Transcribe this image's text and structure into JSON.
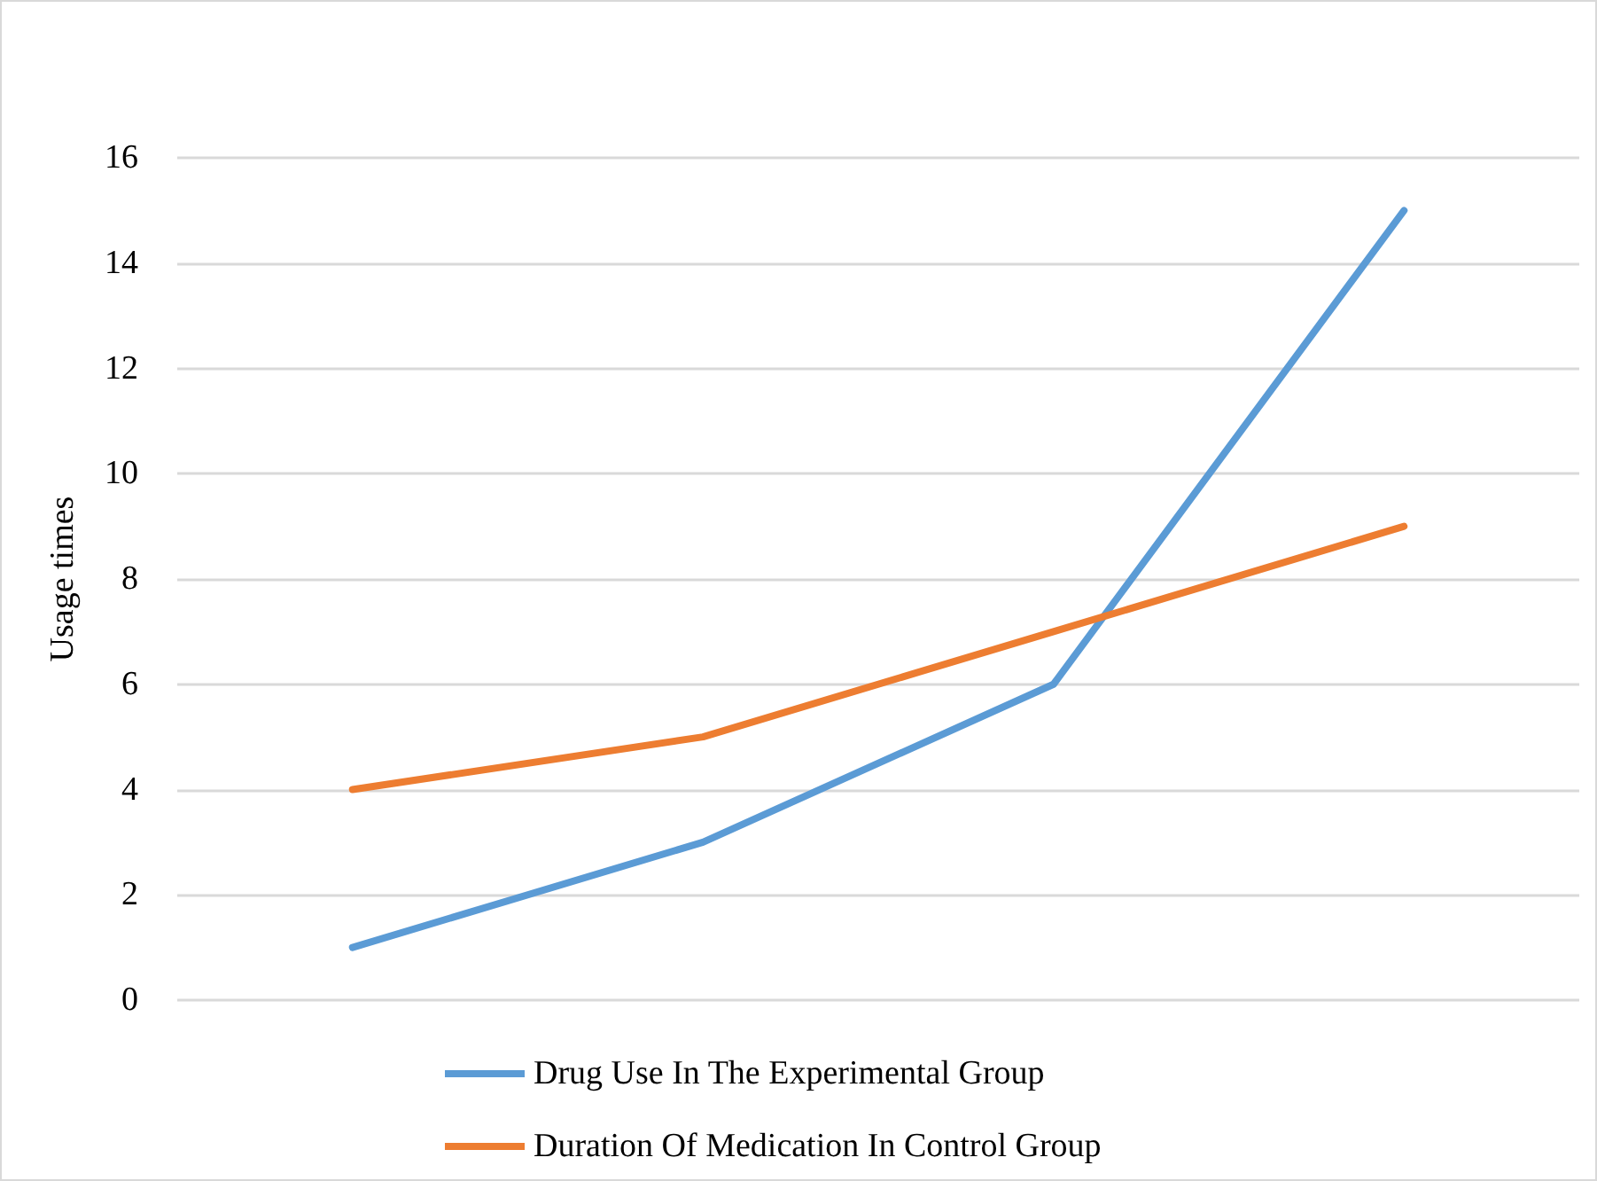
{
  "chart_data": {
    "type": "line",
    "ylabel": "Usage times",
    "categories": [
      null,
      null,
      null,
      null
    ],
    "series": [
      {
        "name": "Drug Use In The Experimental Group",
        "color": "#5b9bd5",
        "values": [
          1,
          3,
          6,
          15
        ]
      },
      {
        "name": "Duration Of Medication In Control Group",
        "color": "#ed7d31",
        "values": [
          4,
          5,
          7,
          9
        ]
      }
    ],
    "ylim": [
      0,
      16
    ],
    "yticks": [
      0,
      2,
      4,
      6,
      8,
      10,
      12,
      14,
      16
    ],
    "grid": "y",
    "legend": "bottom",
    "marker": "none",
    "line_style": "solid"
  }
}
